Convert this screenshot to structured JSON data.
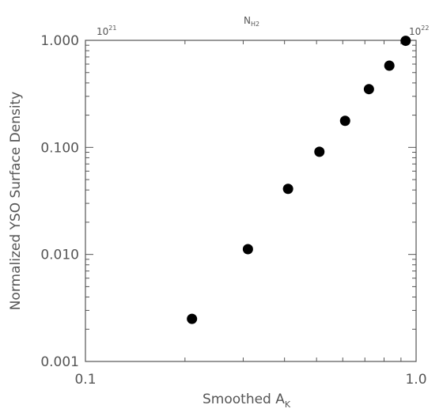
{
  "chart_data": {
    "type": "scatter",
    "title": "",
    "xlabel": "Smoothed A",
    "xlabel_subscript": "K",
    "ylabel": "Normalized YSO Surface Density",
    "x_scale": "log",
    "y_scale": "log",
    "xlim": [
      0.1,
      1.0
    ],
    "ylim": [
      0.001,
      1.0
    ],
    "x_tick_labels": [
      "0.1",
      "1.0"
    ],
    "y_tick_labels": [
      "0.001",
      "0.010",
      "0.100",
      "1.000"
    ],
    "top_axis": {
      "label": "N",
      "label_subscript": "H2",
      "tick_labels": [
        {
          "base": "10",
          "exp": "21"
        },
        {
          "base": "10",
          "exp": "22"
        }
      ]
    },
    "grid": false,
    "points": [
      {
        "x": 0.21,
        "y": 0.0025
      },
      {
        "x": 0.31,
        "y": 0.0112
      },
      {
        "x": 0.41,
        "y": 0.041
      },
      {
        "x": 0.51,
        "y": 0.091
      },
      {
        "x": 0.61,
        "y": 0.177
      },
      {
        "x": 0.72,
        "y": 0.35
      },
      {
        "x": 0.83,
        "y": 0.58
      },
      {
        "x": 0.93,
        "y": 0.99
      }
    ],
    "marker_color": "#000000",
    "axis_color": "#555555"
  }
}
